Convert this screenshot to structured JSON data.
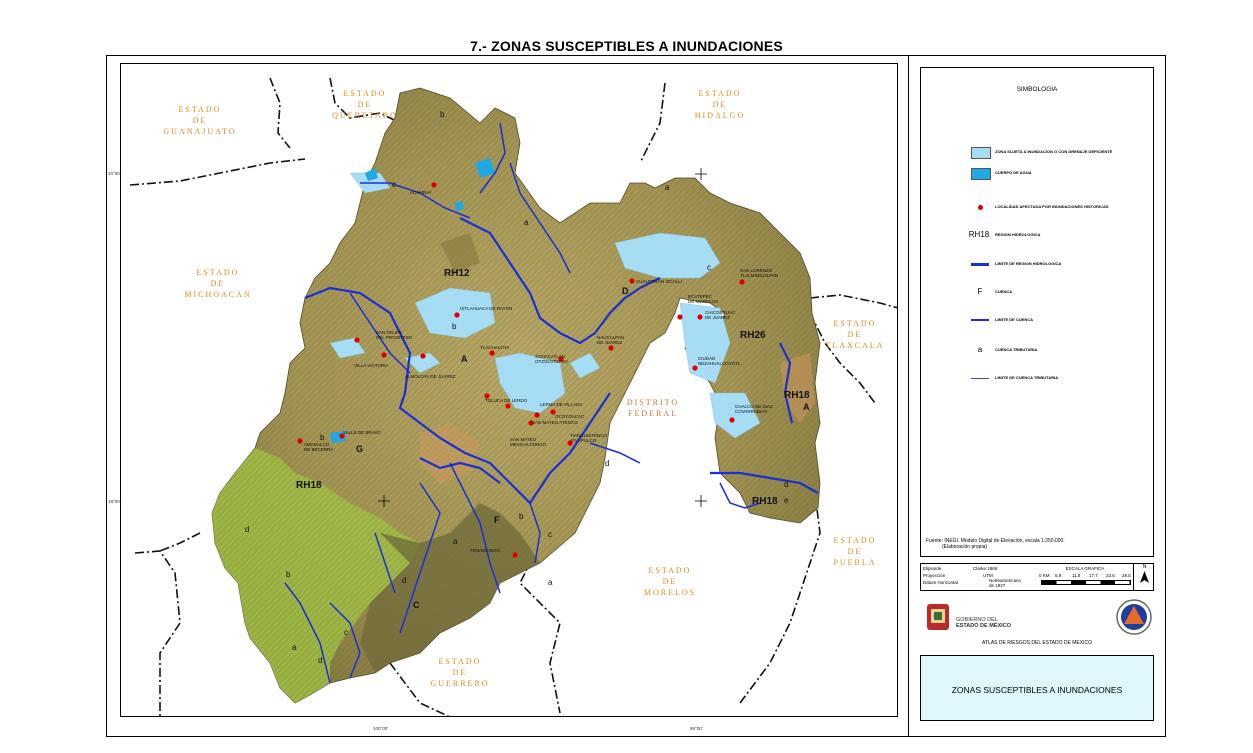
{
  "page_title": "7.- ZONAS SUSCEPTIBLES A INUNDACIONES",
  "states": {
    "guanajuato": "ESTADO\nDE\nGUANAJUATO",
    "queretaro": "ESTADO\nDE\nQUERETARO",
    "hidalgo": "ESTADO\nDE\nHIDALGO",
    "michoacan": "ESTADO\nDE\nMICHOACAN",
    "tlaxcala": "ESTADO\nDE\nTLAXCALA",
    "distrito_federal": "DISTRITO\nFEDERAL",
    "puebla": "ESTADO\nDE\nPUEBLA",
    "morelos": "ESTADO\nDE\nMORELOS",
    "guerrero": "ESTADO\nDE\nGUERRERO"
  },
  "regions": [
    "RH12",
    "RH26",
    "RH18",
    "RH18",
    "RH18"
  ],
  "basins": [
    "A",
    "D",
    "G",
    "F",
    "C",
    "A"
  ],
  "subbasins": [
    "b",
    "c",
    "a",
    "a",
    "c",
    "b",
    "d",
    "d",
    "b",
    "a",
    "c",
    "b",
    "c",
    "a",
    "d",
    "d",
    "d",
    "e",
    "a",
    "b"
  ],
  "localities": [
    "ACAMBAY",
    "IXTLAHUACA DE RAYON",
    "SAN FELIPE\nDEL PROGRESO",
    "VILLA VICTORIA",
    "ALMOLOYA DE JUAREZ",
    "TLACHALOYA",
    "XONACATLAN\nOTZOLOTEPEC",
    "TOLUCA DE LERDO",
    "LERMA DE VILLADA",
    "OCOYOACAC",
    "SAN MATEO ATENCO",
    "SAN MATEO\nMEXICALTZINGO",
    "TIANGUISTENCO\nATLAPULCO",
    "VALLE DE BRAVO",
    "AMANALCO\nDE BECERRA",
    "CUAUTITLAN IZCALLI",
    "ECATEPEC\nDE MORELOS",
    "SAN LORENZO\nTLALMIMILOLPAN",
    "CHICONCUAC\nDE JUAREZ",
    "NAUCALPAN\nDE JUAREZ",
    "CIUDAD\nNEZAHUALCOYOTL",
    "CHALCO DE DIAZ\nCOVARRUBIAS",
    "TENANCINGO"
  ],
  "coordinates": {
    "lat_20": "20°00'",
    "lat_19": "19°00'",
    "lon_100": "100°00'",
    "lon_99": "99°00'"
  },
  "legend": {
    "title": "SIMBOLOGIA",
    "items": [
      {
        "label": "ZONA SUJETA A INUNDACION O CON DRENAJE DEFICIENTE",
        "symbol": "light-blue-rect",
        "color": "#9fd9f0"
      },
      {
        "label": "CUERPO DE AGUA",
        "symbol": "blue-rect",
        "color": "#14a7e0"
      },
      {
        "label": "LOCALIDAD AFECTADA POR INUNDACIONES HISTORICAS",
        "symbol": "red-dot",
        "color": "#e00000"
      },
      {
        "label": "REGION HIDROLOGICA",
        "symbol_text": "RH18"
      },
      {
        "label": "LIMITE DE REGION HIDROLOGICA",
        "symbol": "thick-blue-line",
        "color": "#1a2fd6"
      },
      {
        "label": "CUENCA",
        "symbol_text": "F"
      },
      {
        "label": "LIMITE DE CUENCA",
        "symbol": "medium-blue-line",
        "color": "#1a2fd6"
      },
      {
        "label": "CUENCA TRIBUTARIA",
        "symbol_text": "a"
      },
      {
        "label": "LIMITE DE CUENCA TRIBUTARIA",
        "symbol": "thin-blue-line",
        "color": "#3a46d8"
      }
    ]
  },
  "source": {
    "line1": "Fuente: INEGI. Modelo Digital de Elevación, escala 1:250,000.",
    "line2": "(Elaboración propia)"
  },
  "metadata": {
    "ellipsoid_label": "Elipsoide",
    "ellipsoid_value": "Clarke 1866",
    "projection_label": "Proyección",
    "projection_value": "UTM",
    "datum_label": "Datum Horizontal",
    "datum_value": "Norteamericano\nde 1927",
    "scale_title": "ESCALA GRAFICA",
    "scale_ticks": [
      "0 KM.",
      "5.9",
      "11.8",
      "17.7",
      "23.6",
      "29.5"
    ],
    "north": "N"
  },
  "logos": {
    "gov_line1": "GOBIERNO DEL",
    "gov_line2": "ESTADO DE MÉXICO"
  },
  "atlas_text": "ATLAS DE RIESGOS DEL ESTADO DE MEXICO",
  "map_title_box": "ZONAS SUSCEPTIBLES A INUNDACIONES",
  "colors": {
    "terrain": "#a89a58",
    "terrain_dark": "#6f6a3a",
    "terrain_green": "#9fbe45",
    "flood_zone": "#a6dcf4",
    "water": "#1fa8e3",
    "boundary_blue": "#1a2fd6",
    "state_label": "#d98a1c",
    "locality_dot": "#e00000",
    "title_box": "#dff7fb"
  }
}
